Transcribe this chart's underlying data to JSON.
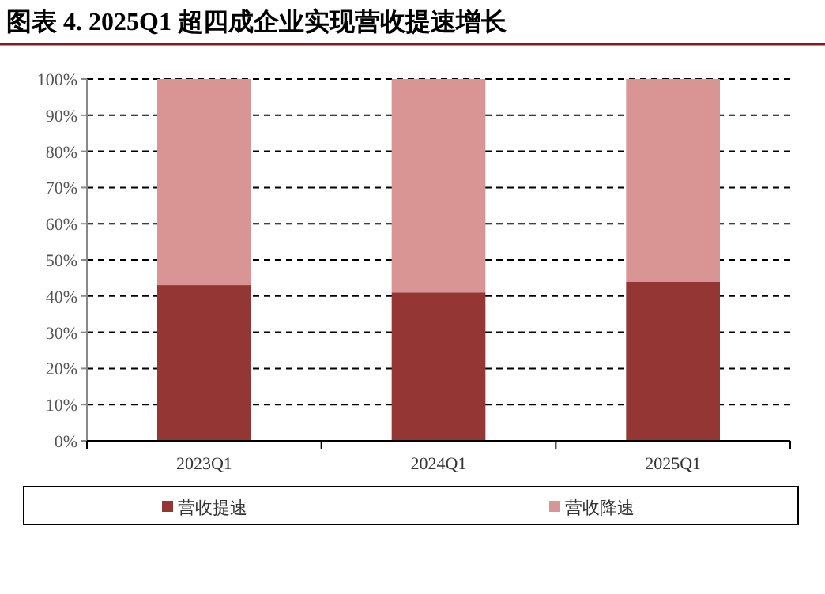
{
  "chart_data": {
    "type": "bar",
    "title": "图表 4. 2025Q1 超四成企业实现营收提速增长",
    "categories": [
      "2023Q1",
      "2024Q1",
      "2025Q1"
    ],
    "stacked": true,
    "series": [
      {
        "name": "营收提速",
        "color": "#943634",
        "values": [
          43,
          41,
          44
        ]
      },
      {
        "name": "营收降速",
        "color": "#d99594",
        "values": [
          57,
          59,
          56
        ]
      }
    ],
    "ylim": [
      0,
      100
    ],
    "yticks": [
      {
        "value": 0,
        "label": "0%"
      },
      {
        "value": 10,
        "label": "10%"
      },
      {
        "value": 20,
        "label": "20%"
      },
      {
        "value": 30,
        "label": "30%"
      },
      {
        "value": 40,
        "label": "40%"
      },
      {
        "value": 50,
        "label": "50%"
      },
      {
        "value": 60,
        "label": "60%"
      },
      {
        "value": 70,
        "label": "70%"
      },
      {
        "value": 80,
        "label": "80%"
      },
      {
        "value": 90,
        "label": "90%"
      },
      {
        "value": 100,
        "label": "100%"
      }
    ],
    "grid": "y",
    "legend": "bottom"
  }
}
